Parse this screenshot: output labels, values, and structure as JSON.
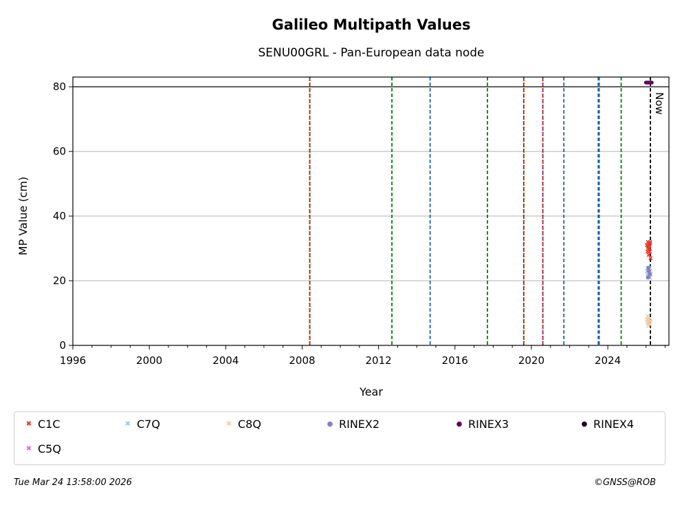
{
  "chart_data": {
    "type": "scatter",
    "title": "Galileo Multipath Values",
    "subtitle": "SENU00GRL - Pan-European data node",
    "xlabel": "Year",
    "ylabel": "MP Value (cm)",
    "xlim": [
      1996,
      2027.2
    ],
    "ylim": [
      0,
      83
    ],
    "xticks": [
      1996,
      2000,
      2004,
      2008,
      2012,
      2016,
      2020,
      2024
    ],
    "yticks": [
      0,
      20,
      40,
      60,
      80
    ],
    "grid_y": true,
    "threshold_line": 80,
    "now_label": "Now",
    "now_x": 2026.23,
    "event_lines": [
      {
        "x": 2008.4,
        "color": "#008000"
      },
      {
        "x": 2008.4,
        "color": "#e60000"
      },
      {
        "x": 2012.7,
        "color": "#008000"
      },
      {
        "x": 2014.7,
        "color": "#1f5fb4"
      },
      {
        "x": 2017.7,
        "color": "#008000"
      },
      {
        "x": 2019.6,
        "color": "#008000"
      },
      {
        "x": 2019.6,
        "color": "#e60000"
      },
      {
        "x": 2020.6,
        "color": "#1f5fb4"
      },
      {
        "x": 2020.6,
        "color": "#e60000"
      },
      {
        "x": 2021.7,
        "color": "#1f5fb4"
      },
      {
        "x": 2023.5,
        "color": "#1f5fb4"
      },
      {
        "x": 2023.55,
        "color": "#1f5fb4"
      },
      {
        "x": 2024.7,
        "color": "#008000"
      }
    ],
    "series": [
      {
        "name": "C1C",
        "marker": "x",
        "color": "#e8372a",
        "points": [
          [
            2026.05,
            31
          ],
          [
            2026.08,
            29
          ],
          [
            2026.1,
            32
          ],
          [
            2026.12,
            30
          ],
          [
            2026.14,
            28
          ],
          [
            2026.16,
            31
          ],
          [
            2026.18,
            30
          ],
          [
            2026.2,
            29
          ],
          [
            2026.22,
            32
          ],
          [
            2026.24,
            27
          ],
          [
            2026.1,
            30.5
          ],
          [
            2026.2,
            31.5
          ]
        ]
      },
      {
        "name": "C7Q",
        "marker": "x",
        "color": "#9fc6e8",
        "points": [
          [
            2026.05,
            23
          ],
          [
            2026.08,
            22
          ],
          [
            2026.1,
            24
          ],
          [
            2026.12,
            21
          ],
          [
            2026.14,
            23
          ],
          [
            2026.16,
            22
          ],
          [
            2026.18,
            24
          ],
          [
            2026.2,
            21
          ],
          [
            2026.22,
            23
          ],
          [
            2026.24,
            22
          ]
        ]
      },
      {
        "name": "C8Q",
        "marker": "x",
        "color": "#f5c9a8",
        "points": [
          [
            2026.05,
            8
          ],
          [
            2026.08,
            7
          ],
          [
            2026.1,
            9
          ],
          [
            2026.12,
            6
          ],
          [
            2026.14,
            8
          ],
          [
            2026.16,
            7
          ],
          [
            2026.18,
            8
          ],
          [
            2026.2,
            6.5
          ],
          [
            2026.22,
            7.5
          ]
        ]
      },
      {
        "name": "RINEX2",
        "marker": "o",
        "color": "#8a7cc0",
        "points": [
          [
            2026.1,
            21
          ],
          [
            2026.15,
            23
          ],
          [
            2026.2,
            22
          ],
          [
            2026.12,
            24
          ]
        ]
      },
      {
        "name": "RINEX3",
        "marker": "o",
        "color": "#6a0060",
        "points": [
          [
            2026.0,
            81.3
          ],
          [
            2026.05,
            81.3
          ],
          [
            2026.1,
            81.3
          ],
          [
            2026.15,
            81.3
          ],
          [
            2026.2,
            81.3
          ],
          [
            2026.25,
            81.3
          ],
          [
            2026.3,
            81.3
          ]
        ]
      },
      {
        "name": "RINEX4",
        "marker": "o",
        "color": "#1a0020",
        "points": []
      },
      {
        "name": "C5Q",
        "marker": "x",
        "color": "#f25ef0",
        "points": []
      }
    ],
    "legend_position": "below"
  },
  "footer": {
    "timestamp": "Tue Mar 24 13:58:00 2026",
    "credit": "©GNSS@ROB"
  }
}
